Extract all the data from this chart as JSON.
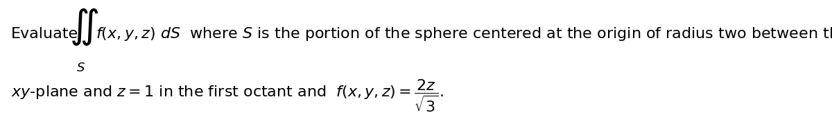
{
  "background_color": "#ffffff",
  "figsize": [
    12.0,
    1.63
  ],
  "dpi": 100,
  "fontsize": 16,
  "text_color": "#000000",
  "integral_fontsize": 28,
  "subscript_fontsize": 13
}
